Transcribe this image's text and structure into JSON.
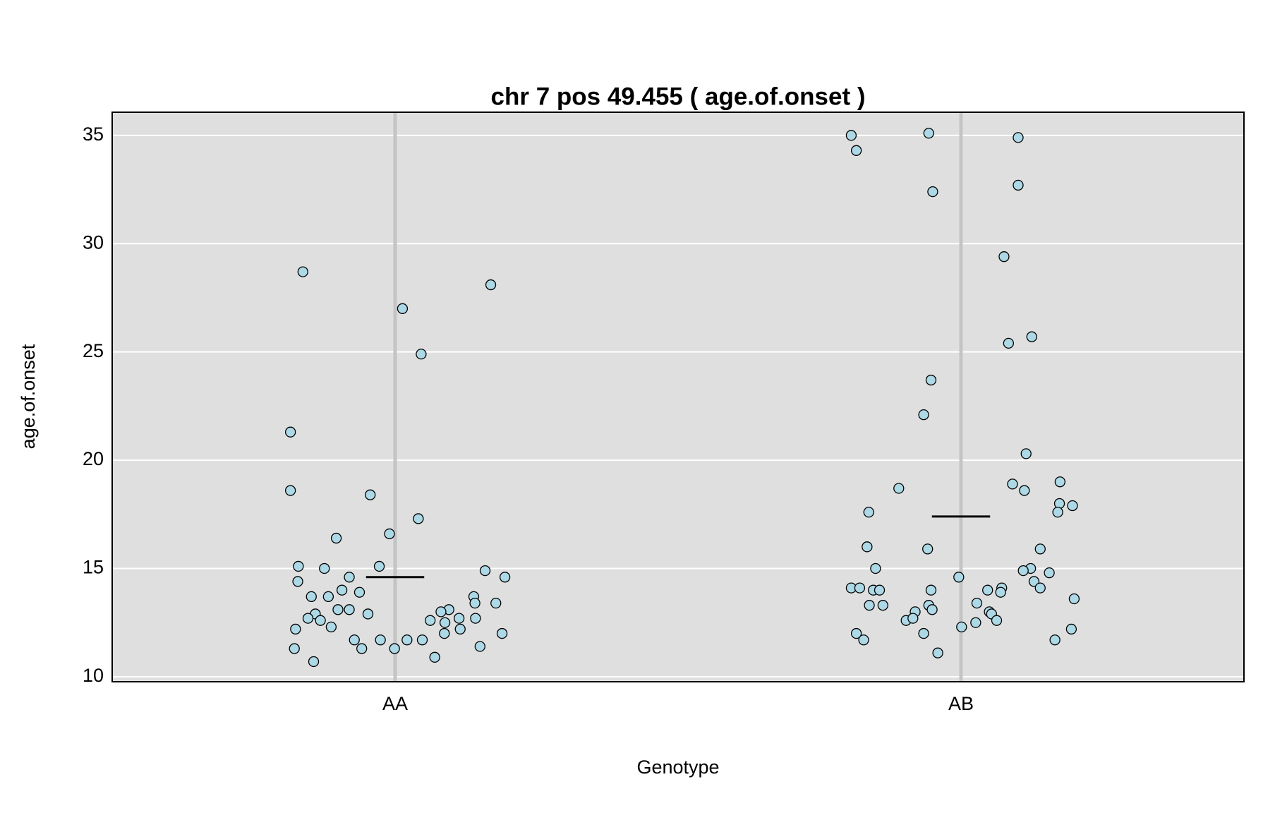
{
  "chart_data": {
    "type": "strip",
    "title": "chr 7 pos 49.455 ( age.of.onset )",
    "x_label": "Genotype",
    "y_label": "age.of.onset",
    "xlim": [
      0.5,
      2.5
    ],
    "ylim": [
      9.77,
      36.07
    ],
    "xticks": [
      {
        "value": 1,
        "label": "AA"
      },
      {
        "value": 2,
        "label": "AB"
      }
    ],
    "yticks": [
      10,
      15,
      20,
      25,
      30,
      35
    ],
    "grid": true,
    "series": [
      {
        "color": "#add8e6",
        "mean": 14.6,
        "x": [
          0.837,
          0.815,
          0.815,
          1.013,
          1.046,
          1.169,
          0.956,
          1.041,
          0.99,
          0.896,
          0.829,
          0.875,
          0.972,
          1.159,
          1.194,
          0.919,
          0.828,
          0.906,
          0.937,
          0.852,
          0.882,
          1.139,
          1.141,
          1.178,
          0.899,
          0.919,
          1.095,
          1.081,
          0.859,
          0.952,
          0.846,
          0.868,
          1.062,
          1.113,
          1.142,
          1.088,
          0.887,
          0.824,
          1.087,
          1.115,
          1.189,
          0.928,
          0.974,
          1.021,
          1.048,
          0.822,
          0.941,
          0.999,
          1.15,
          1.07,
          0.856
        ],
        "values": [
          28.7,
          21.3,
          18.6,
          27.0,
          24.9,
          28.1,
          18.4,
          17.3,
          16.6,
          16.4,
          15.1,
          15.0,
          15.1,
          14.9,
          14.6,
          14.6,
          14.4,
          14.0,
          13.9,
          13.7,
          13.7,
          13.7,
          13.4,
          13.4,
          13.1,
          13.1,
          13.1,
          13.0,
          12.9,
          12.9,
          12.7,
          12.6,
          12.6,
          12.7,
          12.7,
          12.5,
          12.3,
          12.2,
          12.0,
          12.2,
          12.0,
          11.7,
          11.7,
          11.7,
          11.7,
          11.3,
          11.3,
          11.3,
          11.4,
          10.9,
          10.7
        ]
      },
      {
        "color": "#add8e6",
        "mean": 17.4,
        "x": [
          1.806,
          1.815,
          1.943,
          2.101,
          1.95,
          2.101,
          2.076,
          2.084,
          2.125,
          1.947,
          1.934,
          2.115,
          1.89,
          2.091,
          2.112,
          2.175,
          2.174,
          2.197,
          2.171,
          1.837,
          1.834,
          1.941,
          2.14,
          1.849,
          2.123,
          2.11,
          2.156,
          1.996,
          2.129,
          1.806,
          1.821,
          2.072,
          2.14,
          1.845,
          1.856,
          1.947,
          2.047,
          2.07,
          2.2,
          1.838,
          1.862,
          1.943,
          2.028,
          1.949,
          1.919,
          2.05,
          2.054,
          1.903,
          1.915,
          2.063,
          2.001,
          2.026,
          1.815,
          1.934,
          2.195,
          1.828,
          2.166,
          1.959
        ],
        "values": [
          35.0,
          34.3,
          35.1,
          34.9,
          32.4,
          32.7,
          29.4,
          25.4,
          25.7,
          23.7,
          22.1,
          20.3,
          18.7,
          18.9,
          18.6,
          19.0,
          18.0,
          17.9,
          17.6,
          17.6,
          16.0,
          15.9,
          15.9,
          15.0,
          15.0,
          14.9,
          14.8,
          14.6,
          14.4,
          14.1,
          14.1,
          14.1,
          14.1,
          14.0,
          14.0,
          14.0,
          14.0,
          13.9,
          13.6,
          13.3,
          13.3,
          13.3,
          13.4,
          13.1,
          13.0,
          13.0,
          12.9,
          12.6,
          12.7,
          12.6,
          12.3,
          12.5,
          12.0,
          12.0,
          12.2,
          11.7,
          11.7,
          11.1
        ]
      }
    ]
  }
}
